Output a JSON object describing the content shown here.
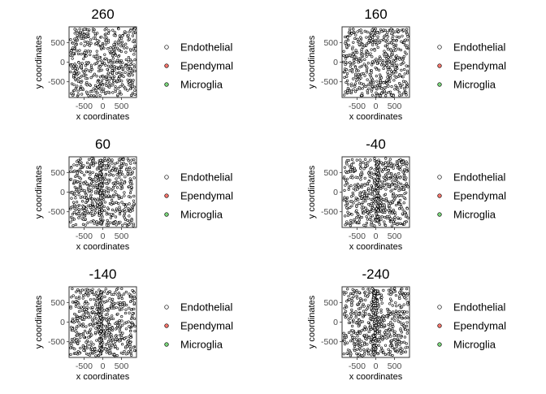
{
  "chart_data": [
    {
      "type": "scatter",
      "title": "260",
      "xlabel": "x coordinates",
      "ylabel": "y coordinates",
      "xlim": [
        -900,
        900
      ],
      "ylim": [
        -900,
        900
      ],
      "x_ticks": [
        -500,
        0,
        500
      ],
      "x_tick_labels": [
        "-500",
        "0",
        "500"
      ],
      "y_ticks": [
        500,
        0,
        -500
      ],
      "y_tick_labels": [
        "500",
        "0",
        "-500"
      ],
      "series": [
        {
          "name": "Endothelial"
        },
        {
          "name": "Ependymal"
        },
        {
          "name": "Microglia"
        }
      ],
      "structure": "none",
      "grid": false,
      "legend": "right"
    },
    {
      "type": "scatter",
      "title": "160",
      "xlabel": "x coordinates",
      "ylabel": "y coordinates",
      "xlim": [
        -900,
        900
      ],
      "ylim": [
        -900,
        900
      ],
      "x_ticks": [
        -500,
        0,
        500
      ],
      "x_tick_labels": [
        "-500",
        "0",
        "500"
      ],
      "y_ticks": [
        500,
        0,
        -500
      ],
      "y_tick_labels": [
        "500",
        "0",
        "-500"
      ],
      "series": [
        {
          "name": "Endothelial"
        },
        {
          "name": "Ependymal"
        },
        {
          "name": "Microglia"
        }
      ],
      "structure": "none",
      "grid": false,
      "legend": "right"
    },
    {
      "type": "scatter",
      "title": "60",
      "xlabel": "x coordinates",
      "ylabel": "y coordinates",
      "xlim": [
        -900,
        900
      ],
      "ylim": [
        -900,
        900
      ],
      "x_ticks": [
        -500,
        0,
        500
      ],
      "x_tick_labels": [
        "-500",
        "0",
        "500"
      ],
      "y_ticks": [
        500,
        0,
        -500
      ],
      "y_tick_labels": [
        "500",
        "0",
        "-500"
      ],
      "series": [
        {
          "name": "Endothelial"
        },
        {
          "name": "Ependymal"
        },
        {
          "name": "Microglia"
        }
      ],
      "structure": "vertical-band",
      "structure_x": -50,
      "grid": false,
      "legend": "right"
    },
    {
      "type": "scatter",
      "title": "-40",
      "xlabel": "x coordinates",
      "ylabel": "y coordinates",
      "xlim": [
        -900,
        900
      ],
      "ylim": [
        -900,
        900
      ],
      "x_ticks": [
        -500,
        0,
        500
      ],
      "x_tick_labels": [
        "-500",
        "0",
        "500"
      ],
      "y_ticks": [
        500,
        0,
        -500
      ],
      "y_tick_labels": [
        "500",
        "0",
        "-500"
      ],
      "series": [
        {
          "name": "Endothelial"
        },
        {
          "name": "Ependymal"
        },
        {
          "name": "Microglia"
        }
      ],
      "structure": "vertical-band",
      "structure_x": 50,
      "grid": false,
      "legend": "right"
    },
    {
      "type": "scatter",
      "title": "-140",
      "xlabel": "x coordinates",
      "ylabel": "y coordinates",
      "xlim": [
        -900,
        900
      ],
      "ylim": [
        -900,
        900
      ],
      "x_ticks": [
        -500,
        0,
        500
      ],
      "x_tick_labels": [
        "-500",
        "0",
        "500"
      ],
      "y_ticks": [
        500,
        0,
        -500
      ],
      "y_tick_labels": [
        "500",
        "0",
        "-500"
      ],
      "series": [
        {
          "name": "Endothelial"
        },
        {
          "name": "Ependymal"
        },
        {
          "name": "Microglia"
        }
      ],
      "structure": "vertical-band",
      "structure_x": -60,
      "grid": false,
      "legend": "right"
    },
    {
      "type": "scatter",
      "title": "-240",
      "xlabel": "x coordinates",
      "ylabel": "y coordinates",
      "xlim": [
        -900,
        900
      ],
      "ylim": [
        -900,
        900
      ],
      "x_ticks": [
        -500,
        0,
        500
      ],
      "x_tick_labels": [
        "-500",
        "0",
        "500"
      ],
      "y_ticks": [
        500,
        0,
        -500
      ],
      "y_tick_labels": [
        "500",
        "0",
        "-500"
      ],
      "series": [
        {
          "name": "Endothelial"
        },
        {
          "name": "Ependymal"
        },
        {
          "name": "Microglia"
        }
      ],
      "structure": "vertical-band",
      "structure_x": -30,
      "grid": false,
      "legend": "right"
    }
  ],
  "colors": {
    "point_stroke": "#000000",
    "endothelial_fill": "#ffffff",
    "ependymal_fill": "#f8766d",
    "microglia_fill": "#7cd67c",
    "panel_border": "#333333",
    "tick_text": "#4d4d4d"
  }
}
